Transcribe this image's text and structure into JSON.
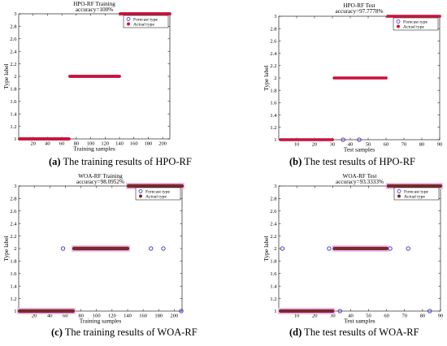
{
  "figure": {
    "charts": [
      {
        "id": "a",
        "caption_letter": "(a)",
        "caption_text": " The training results of HPO-RF",
        "title_lines": [
          "HPO-RF Training",
          "accuracy=100%"
        ],
        "xlabel": "Training samples",
        "ylabel": "Type label",
        "legend": [
          "Forecast type",
          "Actual type"
        ]
      },
      {
        "id": "b",
        "caption_letter": "(b)",
        "caption_text": " The test results of HPO-RF",
        "title_lines": [
          "HPO-RF Test",
          "accuracy=97.7778%"
        ],
        "xlabel": "Test samples",
        "ylabel": "Type label",
        "legend": [
          "Forecast type",
          "Actual type"
        ]
      },
      {
        "id": "c",
        "caption_letter": "(c)",
        "caption_text": " The training results of WOA-RF",
        "title_lines": [
          "WOA-RF Training",
          "accuracy=98.0952%"
        ],
        "xlabel": "Training samples",
        "ylabel": "Type label",
        "legend": [
          "Forecast type",
          "Actual type"
        ]
      },
      {
        "id": "d",
        "caption_letter": "(d)",
        "caption_text": " The test results of WOA-RF",
        "title_lines": [
          "WOA-RF Test",
          "accuracy=93.3333%"
        ],
        "xlabel": "Test samples",
        "ylabel": "Type label",
        "legend": [
          "Forecast type",
          "Actual type"
        ]
      }
    ]
  },
  "colors": {
    "forecast": "#2f2fd6",
    "actual_hpo": "#c8143c",
    "actual_woa": "#7a2a2a",
    "woa_highlight": "#f2b8ee"
  },
  "chart_data": [
    {
      "type": "scatter",
      "title": "HPO-RF Training accuracy=100%",
      "xlabel": "Training samples",
      "ylabel": "Type label",
      "xlim": [
        0,
        210
      ],
      "ylim": [
        1,
        3
      ],
      "xticks": [
        20,
        40,
        60,
        80,
        100,
        120,
        140,
        160,
        180,
        200
      ],
      "yticks": [
        1,
        1.2,
        1.4,
        1.6,
        1.8,
        2,
        2.2,
        2.4,
        2.6,
        2.8,
        3
      ],
      "legend_position": "top-right",
      "series": [
        {
          "name": "Actual type",
          "segments": [
            {
              "x_start": 1,
              "x_end": 70,
              "y": 1
            },
            {
              "x_start": 71,
              "x_end": 140,
              "y": 2
            },
            {
              "x_start": 141,
              "x_end": 210,
              "y": 3
            }
          ]
        },
        {
          "name": "Forecast type",
          "segments": [
            {
              "x_start": 1,
              "x_end": 70,
              "y": 1
            },
            {
              "x_start": 71,
              "x_end": 140,
              "y": 2
            },
            {
              "x_start": 141,
              "x_end": 210,
              "y": 3
            }
          ],
          "outliers": []
        }
      ]
    },
    {
      "type": "scatter",
      "title": "HPO-RF Test accuracy=97.7778%",
      "xlabel": "Test samples",
      "ylabel": "Type label",
      "xlim": [
        0,
        90
      ],
      "ylim": [
        1,
        3
      ],
      "xticks": [
        10,
        20,
        30,
        40,
        50,
        60,
        70,
        80,
        90
      ],
      "yticks": [
        1,
        1.2,
        1.4,
        1.6,
        1.8,
        2,
        2.2,
        2.4,
        2.6,
        2.8,
        3
      ],
      "legend_position": "top-right",
      "series": [
        {
          "name": "Actual type",
          "segments": [
            {
              "x_start": 1,
              "x_end": 30,
              "y": 1
            },
            {
              "x_start": 31,
              "x_end": 60,
              "y": 2
            },
            {
              "x_start": 61,
              "x_end": 90,
              "y": 3
            }
          ]
        },
        {
          "name": "Forecast type",
          "segments": [
            {
              "x_start": 1,
              "x_end": 30,
              "y": 1
            },
            {
              "x_start": 31,
              "x_end": 60,
              "y": 2
            },
            {
              "x_start": 61,
              "x_end": 90,
              "y": 3
            }
          ],
          "outliers": [
            {
              "x": 36,
              "y": 1
            },
            {
              "x": 45,
              "y": 1
            }
          ]
        }
      ]
    },
    {
      "type": "scatter",
      "title": "WOA-RF Training accuracy=98.0952%",
      "xlabel": "Training samples",
      "ylabel": "Type label",
      "xlim": [
        0,
        210
      ],
      "ylim": [
        1,
        3
      ],
      "xticks": [
        20,
        40,
        60,
        80,
        100,
        120,
        140,
        160,
        180,
        200
      ],
      "yticks": [
        1,
        1.2,
        1.4,
        1.6,
        1.8,
        2,
        2.2,
        2.4,
        2.6,
        2.8,
        3
      ],
      "legend_position": "top-right",
      "series": [
        {
          "name": "Actual type",
          "segments": [
            {
              "x_start": 1,
              "x_end": 70,
              "y": 1
            },
            {
              "x_start": 71,
              "x_end": 140,
              "y": 2
            },
            {
              "x_start": 141,
              "x_end": 210,
              "y": 3
            }
          ]
        },
        {
          "name": "Forecast type",
          "segments": [
            {
              "x_start": 1,
              "x_end": 70,
              "y": 1
            },
            {
              "x_start": 71,
              "x_end": 140,
              "y": 2
            },
            {
              "x_start": 141,
              "x_end": 210,
              "y": 3
            }
          ],
          "outliers": [
            {
              "x": 57,
              "y": 2
            },
            {
              "x": 170,
              "y": 2
            },
            {
              "x": 186,
              "y": 2
            },
            {
              "x": 209,
              "y": 1
            }
          ]
        }
      ]
    },
    {
      "type": "scatter",
      "title": "WOA-RF Test accuracy=93.3333%",
      "xlabel": "Test samples",
      "ylabel": "Type label",
      "xlim": [
        0,
        90
      ],
      "ylim": [
        1,
        3
      ],
      "xticks": [
        10,
        20,
        30,
        40,
        50,
        60,
        70,
        80,
        90
      ],
      "yticks": [
        1,
        1.2,
        1.4,
        1.6,
        1.8,
        2,
        2.2,
        2.4,
        2.6,
        2.8,
        3
      ],
      "legend_position": "top-right",
      "series": [
        {
          "name": "Actual type",
          "segments": [
            {
              "x_start": 1,
              "x_end": 30,
              "y": 1
            },
            {
              "x_start": 31,
              "x_end": 60,
              "y": 2
            },
            {
              "x_start": 61,
              "x_end": 90,
              "y": 3
            }
          ]
        },
        {
          "name": "Forecast type",
          "segments": [
            {
              "x_start": 1,
              "x_end": 30,
              "y": 1
            },
            {
              "x_start": 31,
              "x_end": 60,
              "y": 2
            },
            {
              "x_start": 61,
              "x_end": 90,
              "y": 3
            }
          ],
          "outliers": [
            {
              "x": 2,
              "y": 2
            },
            {
              "x": 28,
              "y": 2
            },
            {
              "x": 34,
              "y": 1
            },
            {
              "x": 62,
              "y": 2
            },
            {
              "x": 72,
              "y": 2
            },
            {
              "x": 84,
              "y": 1
            }
          ]
        }
      ]
    }
  ]
}
